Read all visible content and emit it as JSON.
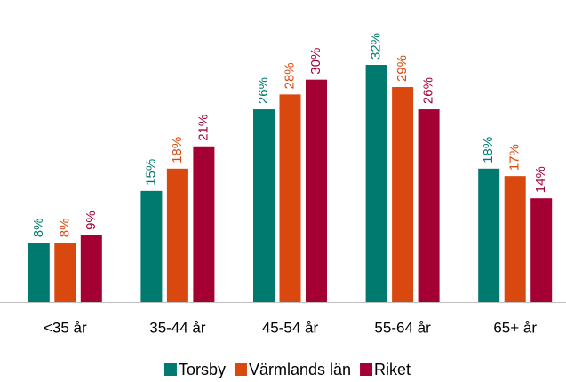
{
  "chart_data": {
    "type": "bar",
    "categories": [
      "<35 år",
      "35-44 år",
      "45-54 år",
      "55-64 år",
      "65+ år"
    ],
    "series": [
      {
        "name": "Torsby",
        "color": "#007a6e",
        "values": [
          8,
          15,
          26,
          32,
          18
        ],
        "value_labels": [
          "8%",
          "15%",
          "26%",
          "32%",
          "18%"
        ]
      },
      {
        "name": "Värmlands län",
        "color": "#d9480f",
        "values": [
          8,
          18,
          28,
          29,
          17
        ],
        "value_labels": [
          "8%",
          "18%",
          "28%",
          "29%",
          "17%"
        ]
      },
      {
        "name": "Riket",
        "color": "#a50034",
        "values": [
          9,
          21,
          30,
          26,
          14
        ],
        "value_labels": [
          "9%",
          "21%",
          "30%",
          "26%",
          "14%"
        ]
      }
    ],
    "legend": "bottom"
  }
}
